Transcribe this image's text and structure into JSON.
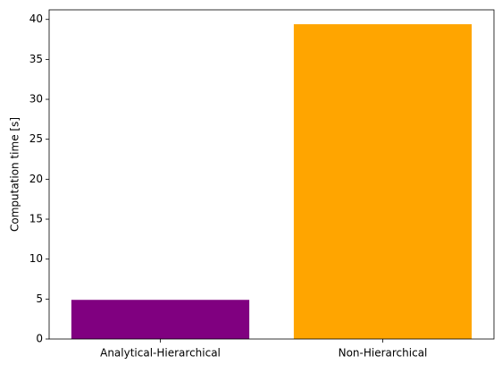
{
  "chart_data": {
    "type": "bar",
    "y_label": "Computation time [s]",
    "categories": [
      "Analytical-Hierarchical",
      "Non-Hierarchical"
    ],
    "values": [
      4.9,
      39.4
    ],
    "colors": [
      "#800080",
      "#ffa500"
    ],
    "ylim": [
      0,
      41.2
    ],
    "yticks": [
      0,
      5,
      10,
      15,
      20,
      25,
      30,
      35,
      40
    ],
    "grid": false
  }
}
